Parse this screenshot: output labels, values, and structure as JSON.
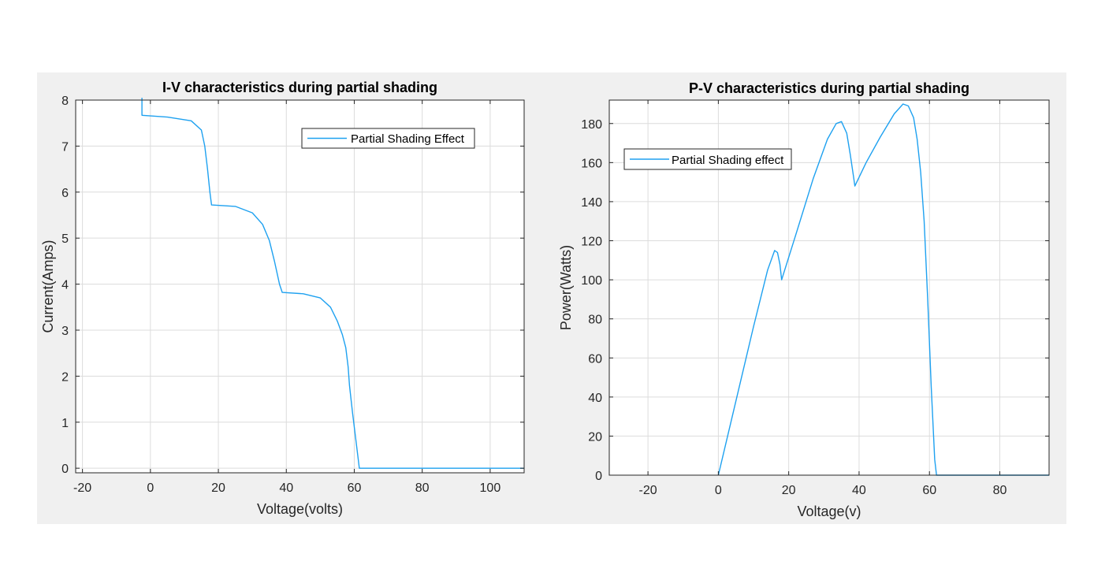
{
  "chart_data": [
    {
      "type": "line",
      "title": "I-V characteristics during partial shading",
      "xlabel": "Voltage(volts)",
      "ylabel": "Current(Amps)",
      "xlim": [
        -22,
        110
      ],
      "ylim": [
        -0.1,
        8
      ],
      "xticks": [
        -20,
        0,
        20,
        40,
        60,
        80,
        100
      ],
      "yticks": [
        0,
        1,
        2,
        3,
        4,
        5,
        6,
        7,
        8
      ],
      "grid": true,
      "legend": "top-right",
      "series": [
        {
          "name": "Partial Shading Effect",
          "color": "#1ea1f0",
          "x": [
            -2.5,
            -2.5,
            5,
            12,
            15,
            16,
            16.8,
            17.5,
            18,
            18,
            25,
            30,
            33,
            35,
            36.5,
            38,
            38.8,
            38.8,
            45,
            50,
            53,
            55,
            56.5,
            57.5,
            58.2,
            58.6,
            59.5,
            60.5,
            61.5,
            61.5,
            80,
            100,
            110
          ],
          "y": [
            8.05,
            7.67,
            7.63,
            7.55,
            7.35,
            7.0,
            6.5,
            6.0,
            5.72,
            5.72,
            5.69,
            5.55,
            5.3,
            4.95,
            4.5,
            4.0,
            3.82,
            3.82,
            3.79,
            3.7,
            3.5,
            3.2,
            2.9,
            2.62,
            2.2,
            1.8,
            1.2,
            0.6,
            0.0,
            0.0,
            0.0,
            0.0,
            0.0
          ]
        }
      ]
    },
    {
      "type": "line",
      "title": "P-V characteristics during partial shading",
      "xlabel": "Voltage(v)",
      "ylabel": "Power(Watts)",
      "xlim": [
        -31,
        94
      ],
      "ylim": [
        0,
        192
      ],
      "xticks": [
        -20,
        0,
        20,
        40,
        60,
        80
      ],
      "yticks": [
        0,
        20,
        40,
        60,
        80,
        100,
        120,
        140,
        160,
        180
      ],
      "grid": true,
      "legend": "top-left",
      "series": [
        {
          "name": "Partial Shading effect",
          "color": "#1ea1f0",
          "x": [
            0,
            0,
            5,
            10,
            14,
            16,
            16.8,
            17.5,
            18,
            18,
            22,
            27,
            31,
            33.5,
            35,
            36.5,
            37.5,
            38.5,
            38.8,
            42,
            46,
            50,
            52.5,
            54,
            55.5,
            56.5,
            57.5,
            58.5,
            59.5,
            60.5,
            61.5,
            62,
            70,
            80,
            94
          ],
          "y": [
            0,
            0,
            38,
            76,
            105,
            115,
            114,
            108,
            100,
            100,
            123,
            152,
            172,
            180,
            181,
            175,
            164,
            152,
            148,
            160,
            173,
            185,
            190,
            189,
            183,
            172,
            155,
            130,
            90,
            45,
            8,
            0,
            0,
            0,
            0
          ]
        }
      ]
    }
  ]
}
